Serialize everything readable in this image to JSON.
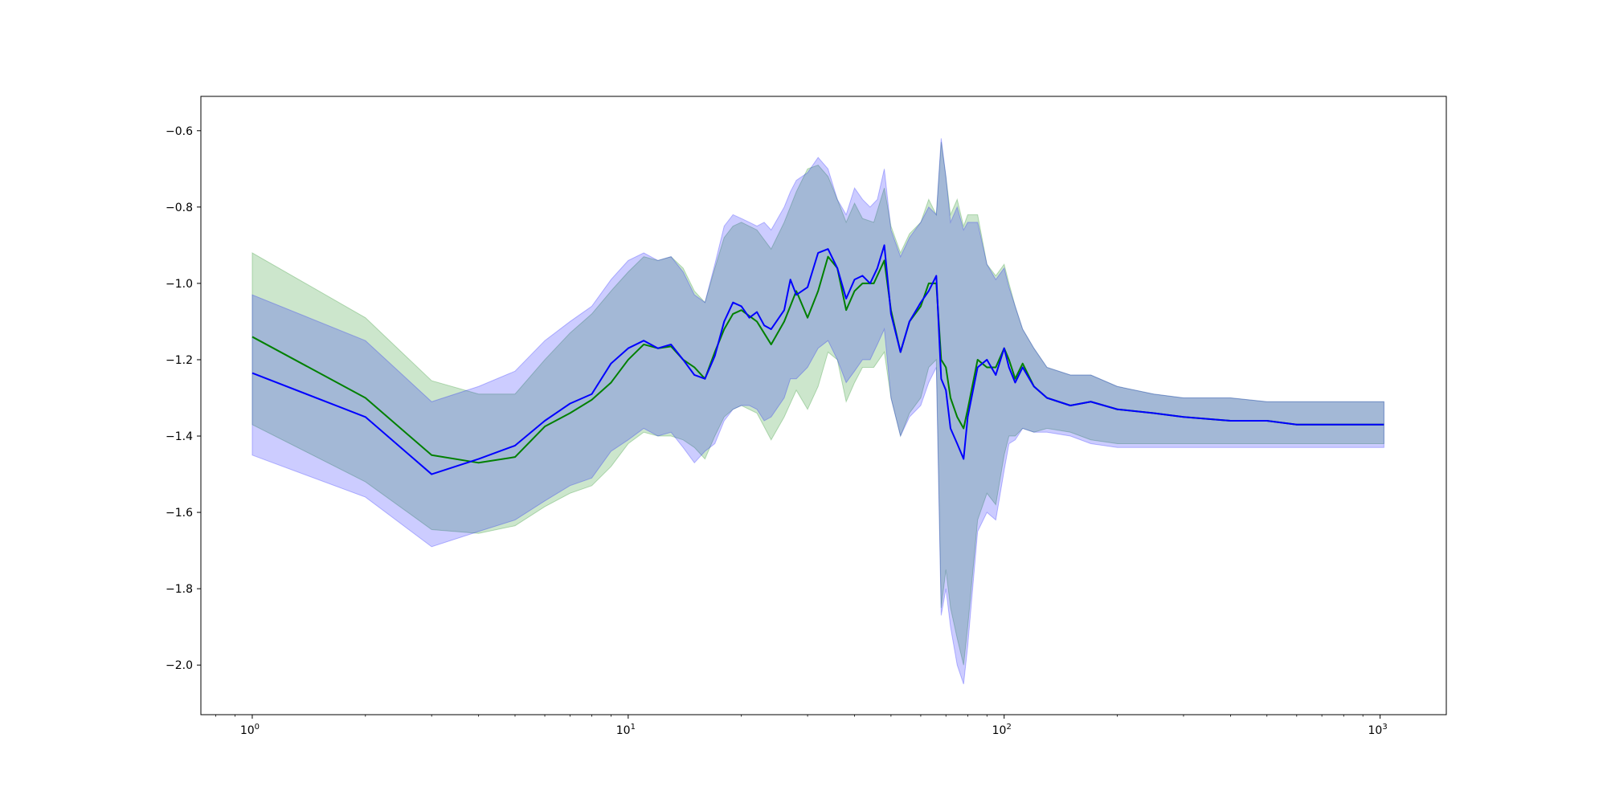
{
  "chart_data": {
    "type": "line",
    "title": "",
    "xlabel": "",
    "ylabel": "",
    "x_scale": "log",
    "xlim": [
      0.73,
      1500
    ],
    "ylim": [
      -2.13,
      -0.51
    ],
    "x_ticks": [
      {
        "value": 1,
        "base": "10",
        "exp": "0"
      },
      {
        "value": 10,
        "base": "10",
        "exp": "1"
      },
      {
        "value": 100,
        "base": "10",
        "exp": "2"
      },
      {
        "value": 1000,
        "base": "10",
        "exp": "3"
      }
    ],
    "y_ticks": [
      {
        "value": -0.6,
        "label": "−0.6"
      },
      {
        "value": -0.8,
        "label": "−0.8"
      },
      {
        "value": -1.0,
        "label": "−1.0"
      },
      {
        "value": -1.2,
        "label": "−1.2"
      },
      {
        "value": -1.4,
        "label": "−1.4"
      },
      {
        "value": -1.6,
        "label": "−1.6"
      },
      {
        "value": -1.8,
        "label": "−1.8"
      },
      {
        "value": -2.0,
        "label": "−2.0"
      }
    ],
    "grid": false,
    "legend": "none",
    "series": [
      {
        "color": "#008000",
        "band_color": "#008000",
        "band_opacity": 0.2,
        "x": [
          1,
          2,
          3,
          4,
          5,
          6,
          7,
          8,
          9,
          10,
          11,
          12,
          13,
          14,
          15,
          16,
          17,
          18,
          19,
          20,
          22,
          24,
          26,
          28,
          30,
          32,
          34,
          36,
          38,
          40,
          42,
          45,
          48,
          50,
          53,
          56,
          60,
          63,
          66,
          68,
          70,
          72,
          75,
          78,
          80,
          85,
          90,
          95,
          100,
          103,
          107,
          112,
          120,
          130,
          150,
          170,
          200,
          250,
          300,
          400,
          500,
          600,
          700,
          800,
          900,
          1024
        ],
        "mean": [
          -1.14,
          -1.3,
          -1.45,
          -1.47,
          -1.455,
          -1.375,
          -1.34,
          -1.305,
          -1.26,
          -1.2,
          -1.16,
          -1.17,
          -1.165,
          -1.2,
          -1.22,
          -1.25,
          -1.18,
          -1.12,
          -1.08,
          -1.07,
          -1.1,
          -1.16,
          -1.1,
          -1.02,
          -1.09,
          -1.02,
          -0.93,
          -0.96,
          -1.07,
          -1.02,
          -1.0,
          -1.0,
          -0.94,
          -1.07,
          -1.18,
          -1.1,
          -1.06,
          -1.0,
          -1.0,
          -1.2,
          -1.22,
          -1.3,
          -1.35,
          -1.38,
          -1.33,
          -1.2,
          -1.22,
          -1.22,
          -1.17,
          -1.2,
          -1.25,
          -1.21,
          -1.27,
          -1.3,
          -1.32,
          -1.31,
          -1.33,
          -1.34,
          -1.35,
          -1.36,
          -1.36,
          -1.37,
          -1.37,
          -1.37,
          -1.37,
          -1.37
        ],
        "upper": [
          -0.92,
          -1.09,
          -1.255,
          -1.29,
          -1.29,
          -1.2,
          -1.13,
          -1.08,
          -1.02,
          -0.97,
          -0.93,
          -0.94,
          -0.93,
          -0.96,
          -1.02,
          -1.05,
          -0.96,
          -0.88,
          -0.85,
          -0.84,
          -0.86,
          -0.91,
          -0.84,
          -0.76,
          -0.7,
          -0.69,
          -0.72,
          -0.78,
          -0.84,
          -0.79,
          -0.83,
          -0.84,
          -0.75,
          -0.85,
          -0.92,
          -0.87,
          -0.84,
          -0.78,
          -0.82,
          -0.63,
          -0.72,
          -0.82,
          -0.78,
          -0.85,
          -0.82,
          -0.82,
          -0.95,
          -0.98,
          -0.95,
          -1.0,
          -1.06,
          -1.12,
          -1.17,
          -1.22,
          -1.24,
          -1.24,
          -1.27,
          -1.29,
          -1.3,
          -1.3,
          -1.31,
          -1.31,
          -1.31,
          -1.31,
          -1.31,
          -1.31
        ],
        "lower": [
          -1.37,
          -1.52,
          -1.645,
          -1.655,
          -1.635,
          -1.585,
          -1.55,
          -1.53,
          -1.48,
          -1.42,
          -1.39,
          -1.4,
          -1.4,
          -1.41,
          -1.43,
          -1.46,
          -1.4,
          -1.35,
          -1.33,
          -1.32,
          -1.34,
          -1.41,
          -1.35,
          -1.28,
          -1.33,
          -1.27,
          -1.18,
          -1.2,
          -1.31,
          -1.26,
          -1.22,
          -1.22,
          -1.18,
          -1.3,
          -1.4,
          -1.34,
          -1.3,
          -1.22,
          -1.2,
          -1.85,
          -1.75,
          -1.85,
          -1.93,
          -2.0,
          -1.9,
          -1.62,
          -1.55,
          -1.58,
          -1.45,
          -1.4,
          -1.4,
          -1.38,
          -1.39,
          -1.38,
          -1.39,
          -1.41,
          -1.42,
          -1.42,
          -1.42,
          -1.42,
          -1.42,
          -1.42,
          -1.42,
          -1.42,
          -1.42,
          -1.42
        ]
      },
      {
        "color": "#0000ff",
        "band_color": "#0000ff",
        "band_opacity": 0.2,
        "x": [
          1,
          2,
          3,
          4,
          5,
          6,
          7,
          8,
          9,
          10,
          11,
          12,
          13,
          14,
          15,
          16,
          17,
          18,
          19,
          20,
          21,
          22,
          23,
          24,
          26,
          27,
          28,
          30,
          32,
          34,
          36,
          38,
          40,
          42,
          44,
          46,
          48,
          50,
          53,
          56,
          60,
          63,
          66,
          68,
          70,
          72,
          75,
          78,
          80,
          85,
          90,
          95,
          100,
          103,
          107,
          112,
          120,
          130,
          150,
          170,
          200,
          250,
          300,
          400,
          500,
          600,
          700,
          800,
          900,
          1024
        ],
        "mean": [
          -1.235,
          -1.35,
          -1.5,
          -1.46,
          -1.425,
          -1.36,
          -1.315,
          -1.29,
          -1.21,
          -1.17,
          -1.15,
          -1.17,
          -1.16,
          -1.2,
          -1.24,
          -1.25,
          -1.19,
          -1.1,
          -1.05,
          -1.06,
          -1.09,
          -1.075,
          -1.11,
          -1.12,
          -1.07,
          -0.99,
          -1.03,
          -1.01,
          -0.92,
          -0.91,
          -0.96,
          -1.04,
          -0.99,
          -0.98,
          -1.0,
          -0.96,
          -0.9,
          -1.08,
          -1.18,
          -1.1,
          -1.05,
          -1.02,
          -0.98,
          -1.25,
          -1.28,
          -1.38,
          -1.42,
          -1.46,
          -1.35,
          -1.22,
          -1.2,
          -1.24,
          -1.17,
          -1.22,
          -1.26,
          -1.22,
          -1.27,
          -1.3,
          -1.32,
          -1.31,
          -1.33,
          -1.34,
          -1.35,
          -1.36,
          -1.36,
          -1.37,
          -1.37,
          -1.37,
          -1.37,
          -1.37
        ],
        "upper": [
          -1.03,
          -1.15,
          -1.31,
          -1.27,
          -1.23,
          -1.15,
          -1.1,
          -1.06,
          -0.99,
          -0.94,
          -0.92,
          -0.94,
          -0.93,
          -0.97,
          -1.03,
          -1.05,
          -0.95,
          -0.85,
          -0.82,
          -0.83,
          -0.84,
          -0.85,
          -0.84,
          -0.86,
          -0.8,
          -0.76,
          -0.73,
          -0.71,
          -0.67,
          -0.7,
          -0.78,
          -0.82,
          -0.75,
          -0.78,
          -0.8,
          -0.78,
          -0.7,
          -0.86,
          -0.93,
          -0.88,
          -0.84,
          -0.8,
          -0.82,
          -0.62,
          -0.72,
          -0.84,
          -0.8,
          -0.86,
          -0.84,
          -0.84,
          -0.95,
          -0.99,
          -0.96,
          -1.01,
          -1.06,
          -1.12,
          -1.17,
          -1.22,
          -1.24,
          -1.24,
          -1.27,
          -1.29,
          -1.3,
          -1.3,
          -1.31,
          -1.31,
          -1.31,
          -1.31,
          -1.31,
          -1.31
        ],
        "lower": [
          -1.45,
          -1.56,
          -1.69,
          -1.65,
          -1.62,
          -1.57,
          -1.53,
          -1.51,
          -1.44,
          -1.41,
          -1.38,
          -1.4,
          -1.39,
          -1.43,
          -1.47,
          -1.44,
          -1.42,
          -1.36,
          -1.33,
          -1.32,
          -1.32,
          -1.33,
          -1.36,
          -1.35,
          -1.3,
          -1.25,
          -1.25,
          -1.22,
          -1.17,
          -1.15,
          -1.2,
          -1.26,
          -1.23,
          -1.2,
          -1.2,
          -1.16,
          -1.12,
          -1.3,
          -1.4,
          -1.35,
          -1.32,
          -1.26,
          -1.22,
          -1.87,
          -1.8,
          -1.9,
          -2.0,
          -2.05,
          -1.95,
          -1.65,
          -1.6,
          -1.62,
          -1.49,
          -1.42,
          -1.41,
          -1.38,
          -1.39,
          -1.39,
          -1.4,
          -1.42,
          -1.43,
          -1.43,
          -1.43,
          -1.43,
          -1.43,
          -1.43,
          -1.43,
          -1.43,
          -1.43,
          -1.43
        ]
      }
    ]
  }
}
